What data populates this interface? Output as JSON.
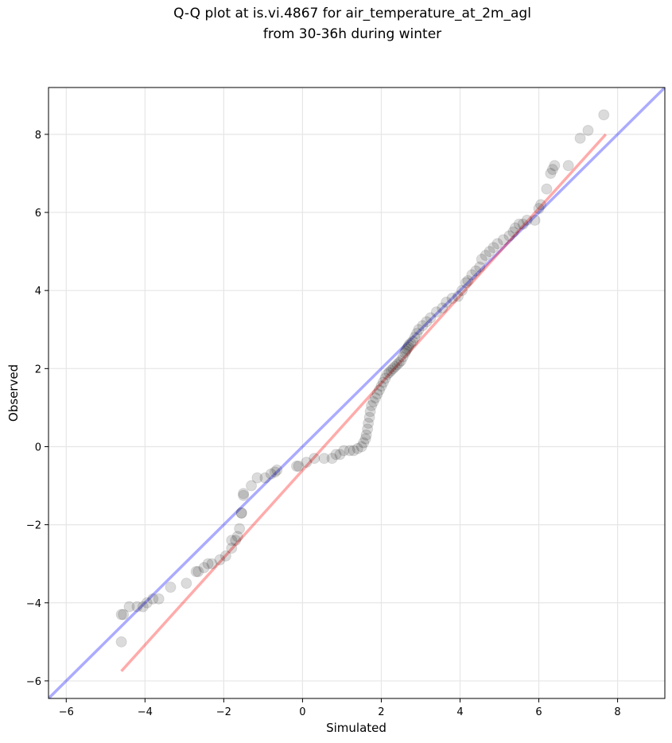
{
  "chart_data": {
    "type": "scatter",
    "title_line1": "Q-Q plot at is.vi.4867 for air_temperature_at_2m_agl",
    "title_line2": "from 30-36h during winter",
    "xlabel": "Simulated",
    "ylabel": "Observed",
    "xlim": [
      -6.45,
      9.2
    ],
    "ylim": [
      -6.45,
      9.2
    ],
    "xticks": [
      -6,
      -4,
      -2,
      0,
      2,
      4,
      6,
      8
    ],
    "yticks": [
      -6,
      -4,
      -2,
      0,
      2,
      4,
      6,
      8
    ],
    "xtick_labels": [
      "−6",
      "−4",
      "−2",
      "0",
      "2",
      "4",
      "6",
      "8"
    ],
    "ytick_labels": [
      "−6",
      "−4",
      "−2",
      "0",
      "2",
      "4",
      "6",
      "8"
    ],
    "grid": true,
    "colors": {
      "points": "#000000",
      "identity_line": "#0000ff",
      "fit_line": "#ff0000",
      "grid": "#e6e6e6"
    },
    "identity_line": {
      "x": [
        -6.45,
        9.2
      ],
      "y": [
        -6.45,
        9.2
      ]
    },
    "fit_line": {
      "x": [
        -4.6,
        7.7
      ],
      "y": [
        -5.75,
        8.0
      ]
    },
    "points": [
      [
        -4.6,
        -5.0
      ],
      [
        -4.6,
        -4.3
      ],
      [
        -4.55,
        -4.3
      ],
      [
        -4.4,
        -4.1
      ],
      [
        -4.2,
        -4.1
      ],
      [
        -4.05,
        -4.1
      ],
      [
        -3.95,
        -4.0
      ],
      [
        -3.8,
        -3.9
      ],
      [
        -3.65,
        -3.9
      ],
      [
        -3.35,
        -3.6
      ],
      [
        -2.95,
        -3.5
      ],
      [
        -2.7,
        -3.2
      ],
      [
        -2.65,
        -3.2
      ],
      [
        -2.5,
        -3.1
      ],
      [
        -2.4,
        -3.0
      ],
      [
        -2.3,
        -3.0
      ],
      [
        -2.1,
        -2.9
      ],
      [
        -1.95,
        -2.8
      ],
      [
        -1.8,
        -2.6
      ],
      [
        -1.8,
        -2.4
      ],
      [
        -1.7,
        -2.4
      ],
      [
        -1.65,
        -2.3
      ],
      [
        -1.6,
        -2.1
      ],
      [
        -1.55,
        -1.7
      ],
      [
        -1.55,
        -1.7
      ],
      [
        -1.5,
        -1.25
      ],
      [
        -1.5,
        -1.2
      ],
      [
        -1.3,
        -1.0
      ],
      [
        -1.15,
        -0.8
      ],
      [
        -0.95,
        -0.8
      ],
      [
        -0.8,
        -0.7
      ],
      [
        -0.7,
        -0.65
      ],
      [
        -0.65,
        -0.6
      ],
      [
        -0.15,
        -0.5
      ],
      [
        -0.1,
        -0.5
      ],
      [
        0.1,
        -0.4
      ],
      [
        0.3,
        -0.3
      ],
      [
        0.55,
        -0.3
      ],
      [
        0.75,
        -0.3
      ],
      [
        0.85,
        -0.2
      ],
      [
        0.95,
        -0.2
      ],
      [
        1.05,
        -0.1
      ],
      [
        1.2,
        -0.1
      ],
      [
        1.3,
        -0.1
      ],
      [
        1.4,
        -0.05
      ],
      [
        1.5,
        0.0
      ],
      [
        1.55,
        0.1
      ],
      [
        1.6,
        0.2
      ],
      [
        1.62,
        0.3
      ],
      [
        1.65,
        0.45
      ],
      [
        1.67,
        0.6
      ],
      [
        1.7,
        0.75
      ],
      [
        1.72,
        0.9
      ],
      [
        1.75,
        1.05
      ],
      [
        1.8,
        1.15
      ],
      [
        1.85,
        1.25
      ],
      [
        1.9,
        1.35
      ],
      [
        1.95,
        1.45
      ],
      [
        2.0,
        1.55
      ],
      [
        2.05,
        1.65
      ],
      [
        2.1,
        1.75
      ],
      [
        2.15,
        1.85
      ],
      [
        2.2,
        1.9
      ],
      [
        2.25,
        1.95
      ],
      [
        2.3,
        2.0
      ],
      [
        2.35,
        2.05
      ],
      [
        2.4,
        2.1
      ],
      [
        2.45,
        2.15
      ],
      [
        2.5,
        2.2
      ],
      [
        2.55,
        2.3
      ],
      [
        2.6,
        2.4
      ],
      [
        2.62,
        2.45
      ],
      [
        2.65,
        2.5
      ],
      [
        2.68,
        2.55
      ],
      [
        2.7,
        2.6
      ],
      [
        2.75,
        2.65
      ],
      [
        2.8,
        2.7
      ],
      [
        2.85,
        2.8
      ],
      [
        2.9,
        2.9
      ],
      [
        2.95,
        3.0
      ],
      [
        3.05,
        3.1
      ],
      [
        3.15,
        3.2
      ],
      [
        3.25,
        3.3
      ],
      [
        3.4,
        3.45
      ],
      [
        3.55,
        3.55
      ],
      [
        3.65,
        3.7
      ],
      [
        3.8,
        3.8
      ],
      [
        3.95,
        3.85
      ],
      [
        4.05,
        4.0
      ],
      [
        4.15,
        4.2
      ],
      [
        4.2,
        4.25
      ],
      [
        4.3,
        4.4
      ],
      [
        4.4,
        4.5
      ],
      [
        4.5,
        4.6
      ],
      [
        4.55,
        4.8
      ],
      [
        4.65,
        4.9
      ],
      [
        4.75,
        5.0
      ],
      [
        4.85,
        5.1
      ],
      [
        4.95,
        5.2
      ],
      [
        5.1,
        5.3
      ],
      [
        5.25,
        5.4
      ],
      [
        5.35,
        5.5
      ],
      [
        5.4,
        5.6
      ],
      [
        5.5,
        5.7
      ],
      [
        5.6,
        5.7
      ],
      [
        5.7,
        5.8
      ],
      [
        5.9,
        5.8
      ],
      [
        6.0,
        6.1
      ],
      [
        6.05,
        6.2
      ],
      [
        6.2,
        6.6
      ],
      [
        6.3,
        7.0
      ],
      [
        6.35,
        7.1
      ],
      [
        6.4,
        7.2
      ],
      [
        6.75,
        7.2
      ],
      [
        7.05,
        7.9
      ],
      [
        7.25,
        8.1
      ],
      [
        7.65,
        8.5
      ]
    ]
  }
}
